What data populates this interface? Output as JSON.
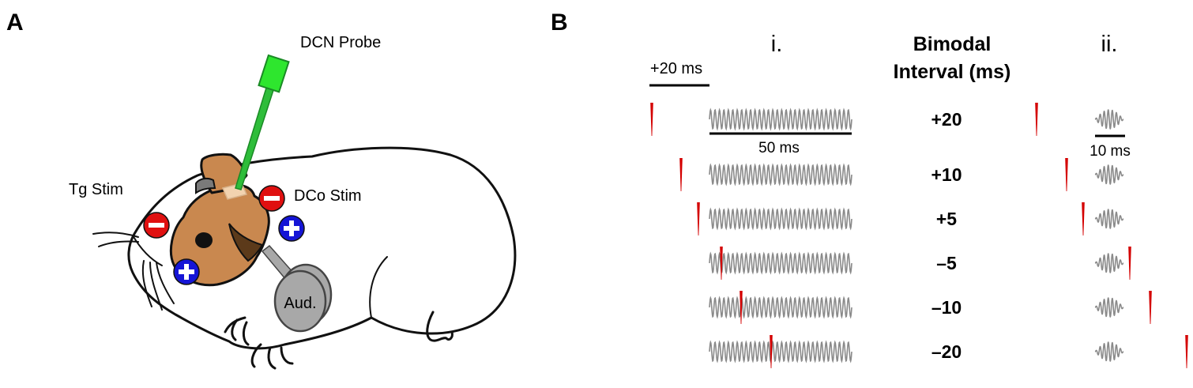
{
  "panels": {
    "a": {
      "letter": "A"
    },
    "b": {
      "letter": "B"
    }
  },
  "labels": {
    "probe": "DCN Probe",
    "tg": "Tg Stim",
    "dco": "DCo Stim",
    "aud": "Aud."
  },
  "headers": {
    "col_i": "i.",
    "col_ii": "ii.",
    "interval_line1": "Bimodal",
    "interval_line2": "Interval (ms)"
  },
  "scale": {
    "top": "+20 ms",
    "long": "50 ms",
    "short": "10 ms"
  },
  "intervals": [
    {
      "label": "+20",
      "value_ms": 20
    },
    {
      "label": "+10",
      "value_ms": 10
    },
    {
      "label": "+5",
      "value_ms": 5
    },
    {
      "label": "–5",
      "value_ms": -5
    },
    {
      "label": "–10",
      "value_ms": -10
    },
    {
      "label": "–20",
      "value_ms": -20
    }
  ],
  "colors": {
    "spike": "#d40000",
    "waveform": "#8a8a8a",
    "probe": "#2ebd3a",
    "head": "#c9884f",
    "ear_dark": "#5c3a1a",
    "minus_electrode": "#e01010",
    "plus_electrode": "#1515d6",
    "speaker": "#a8a8a8"
  }
}
